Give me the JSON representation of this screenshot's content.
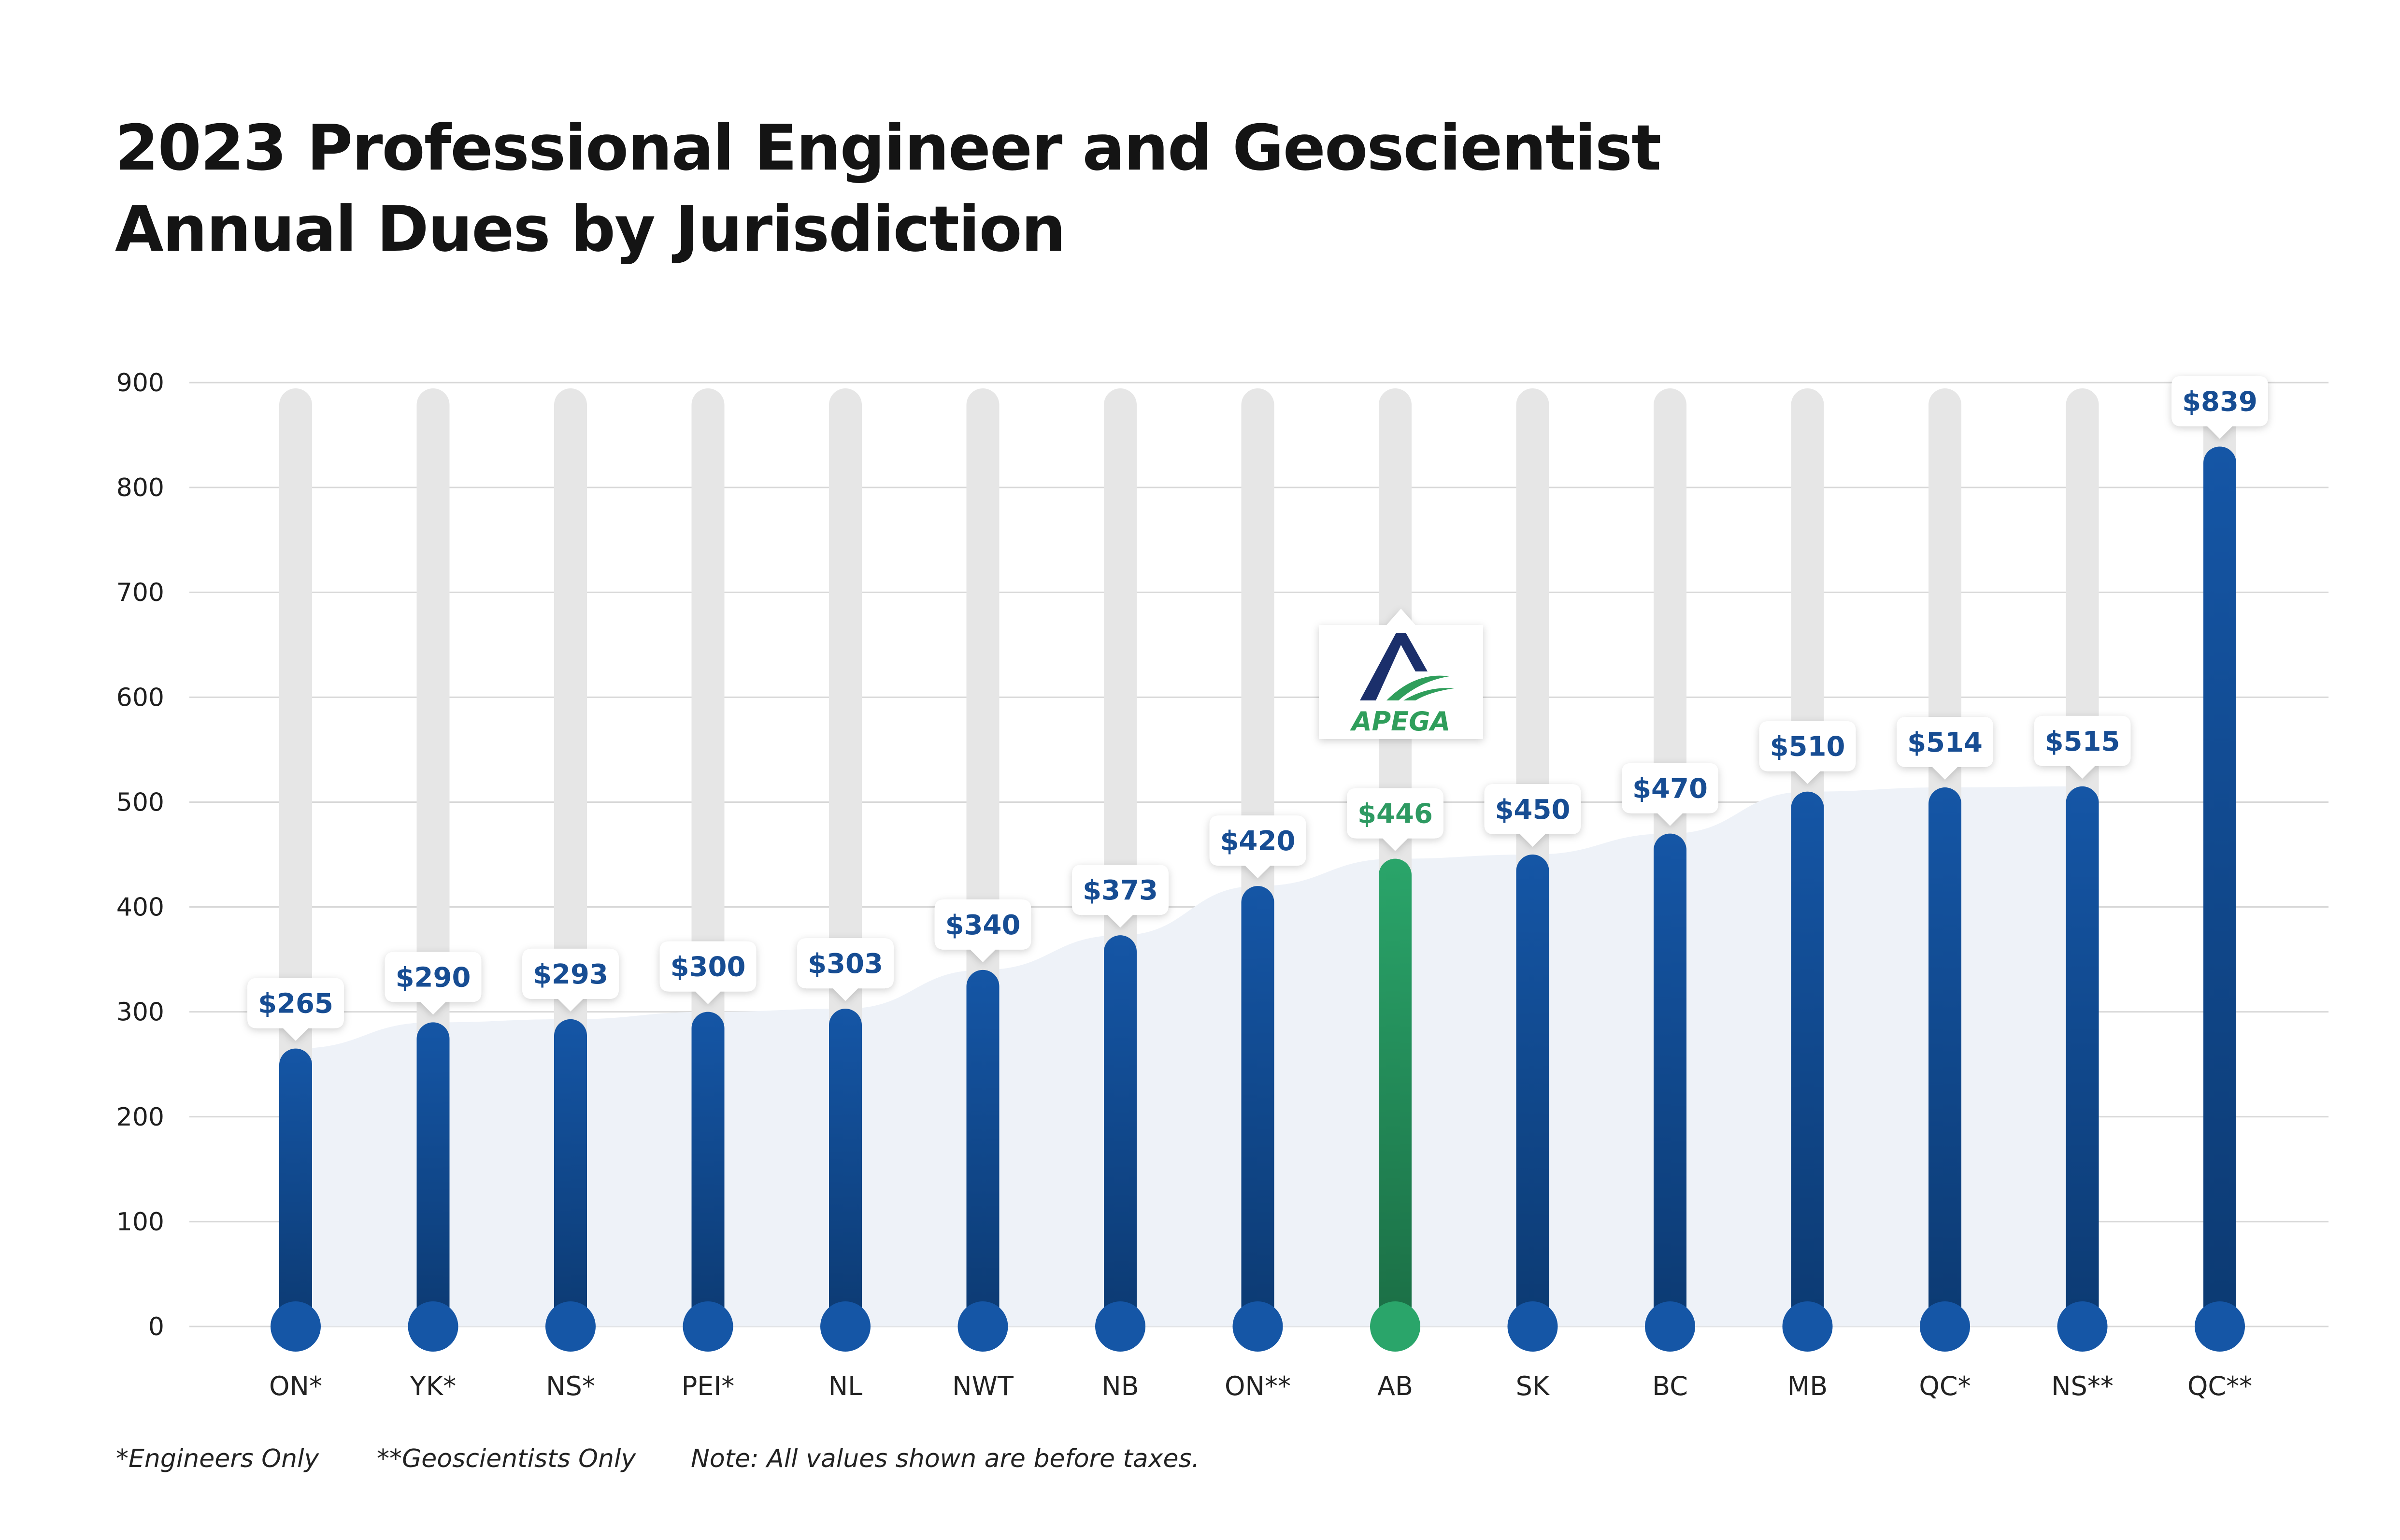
{
  "title_line1": "2023 Professional Engineer and Geoscientist",
  "title_line2": "Annual Dues by Jurisdiction",
  "footnotes": {
    "engineers_only": "*Engineers Only",
    "geoscientists_only": "**Geoscientists Only",
    "note": "Note: All values shown are before taxes."
  },
  "logo": {
    "text": "APEGA",
    "icon": "apega-logo-icon"
  },
  "colors": {
    "bar_blue_top": "#1556a6",
    "bar_blue_bottom": "#0c3a72",
    "bar_green_top": "#2aa56a",
    "bar_green_bottom": "#1b6e45",
    "track_gray": "#e6e6e6",
    "label_blue": "#174d93",
    "label_green": "#2e9a62",
    "area_fill": "#eef2f8",
    "grid": "#d8d8d8"
  },
  "chart_data": {
    "type": "bar",
    "categories": [
      "ON*",
      "YK*",
      "NS*",
      "PEI*",
      "NL",
      "NWT",
      "NB",
      "ON**",
      "AB",
      "SK",
      "BC",
      "MB",
      "QC*",
      "NS**",
      "QC**"
    ],
    "values": [
      265,
      290,
      293,
      300,
      303,
      340,
      373,
      420,
      446,
      450,
      470,
      510,
      514,
      515,
      839
    ],
    "value_labels": [
      "$265",
      "$290",
      "$293",
      "$300",
      "$303",
      "$340",
      "$373",
      "$420",
      "$446",
      "$450",
      "$470",
      "$510",
      "$514",
      "$515",
      "$839"
    ],
    "highlight_category": "AB",
    "yticks": [
      0,
      100,
      200,
      300,
      400,
      500,
      600,
      700,
      800,
      900
    ],
    "ylim": [
      0,
      900
    ],
    "grid": true,
    "legend": "none"
  }
}
